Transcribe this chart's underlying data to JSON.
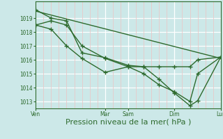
{
  "bg_color": "#cce8e8",
  "grid_major_color": "#ffffff",
  "grid_minor_color": "#e8c8c8",
  "line_color": "#2d6a2d",
  "xlabel": "Pression niveau de la mer( hPa )",
  "xlabel_fontsize": 8,
  "yticks": [
    1013,
    1014,
    1015,
    1016,
    1017,
    1018,
    1019
  ],
  "ylim": [
    1012.5,
    1020.2
  ],
  "xlim": [
    0,
    24
  ],
  "xtick_labels": [
    "Ven",
    "Mar",
    "Sam",
    "Dim",
    "Lun"
  ],
  "xtick_pos": [
    0,
    9,
    12,
    18,
    24
  ],
  "n_vgrid_major": 5,
  "vgrid_major_pos": [
    0,
    9,
    12,
    18,
    24
  ],
  "vgrid_minor_step": 1,
  "series1_straight": {
    "x": [
      0,
      24
    ],
    "y": [
      1019.5,
      1016.1
    ]
  },
  "series2": {
    "x": [
      0,
      2,
      4,
      6,
      9,
      12,
      14,
      16,
      18,
      20,
      21,
      24
    ],
    "y": [
      1018.5,
      1018.8,
      1018.5,
      1017.0,
      1016.1,
      1015.5,
      1015.5,
      1015.5,
      1015.5,
      1015.5,
      1016.0,
      1016.2
    ]
  },
  "series3": {
    "x": [
      0,
      2,
      4,
      6,
      9,
      12,
      14,
      16,
      18,
      20,
      21,
      24
    ],
    "y": [
      1018.5,
      1018.2,
      1017.0,
      1016.1,
      1015.1,
      1015.5,
      1015.0,
      1014.2,
      1013.7,
      1013.0,
      1015.0,
      1016.2
    ]
  },
  "series4": {
    "x": [
      0,
      2,
      4,
      6,
      9,
      12,
      14,
      16,
      18,
      20,
      21,
      24
    ],
    "y": [
      1019.6,
      1019.0,
      1018.8,
      1016.5,
      1016.15,
      1015.6,
      1015.5,
      1014.6,
      1013.6,
      1012.7,
      1013.05,
      1016.2
    ]
  }
}
